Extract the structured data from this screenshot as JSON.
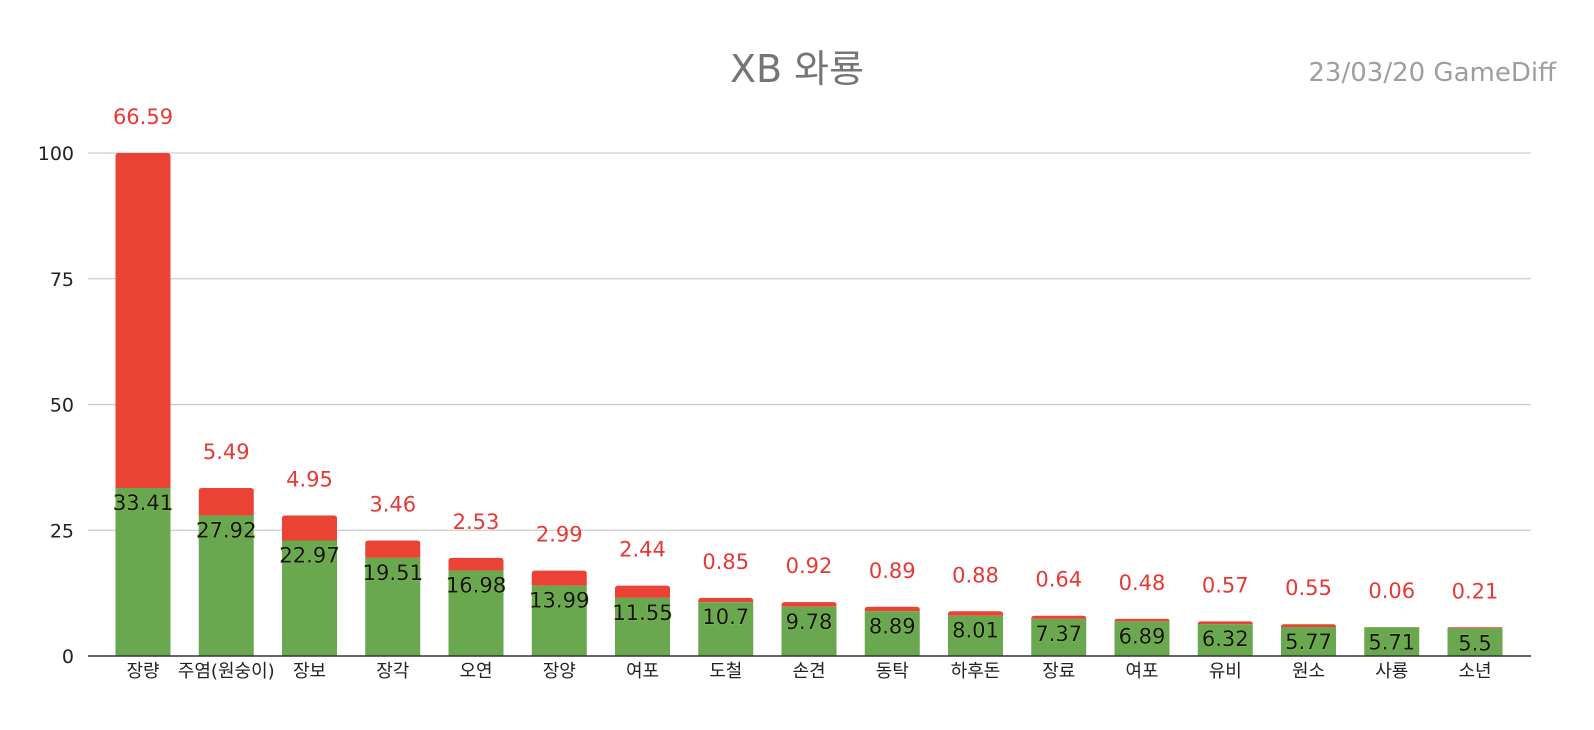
{
  "header": {
    "title": "XB 와룡",
    "subtitle": "23/03/20  GameDiff"
  },
  "colors": {
    "bottom": "#6aa84f",
    "top": "#ea4335",
    "top_label": "#e53935",
    "grid": "#cccccc",
    "axis": "#333333"
  },
  "chart_data": {
    "type": "bar",
    "stacked": true,
    "title": "XB 와룡",
    "subtitle": "23/03/20  GameDiff",
    "ylim": [
      0,
      100
    ],
    "yticks": [
      0,
      25,
      50,
      75,
      100
    ],
    "grid": true,
    "categories": [
      "장량",
      "주염(원숭이)",
      "장보",
      "장각",
      "오연",
      "장양",
      "여포",
      "도철",
      "손견",
      "동탁",
      "하후돈",
      "장료",
      "여포",
      "유비",
      "원소",
      "사룡",
      "소년"
    ],
    "series": [
      {
        "color": "#6aa84f",
        "values": [
          33.41,
          27.92,
          22.97,
          19.51,
          16.98,
          13.99,
          11.55,
          10.7,
          9.78,
          8.89,
          8.01,
          7.37,
          6.89,
          6.32,
          5.77,
          5.71,
          5.5
        ]
      },
      {
        "color": "#ea4335",
        "values": [
          66.59,
          5.49,
          4.95,
          3.46,
          2.53,
          2.99,
          2.44,
          0.85,
          0.92,
          0.89,
          0.88,
          0.64,
          0.48,
          0.57,
          0.55,
          0.06,
          0.21
        ]
      }
    ]
  }
}
